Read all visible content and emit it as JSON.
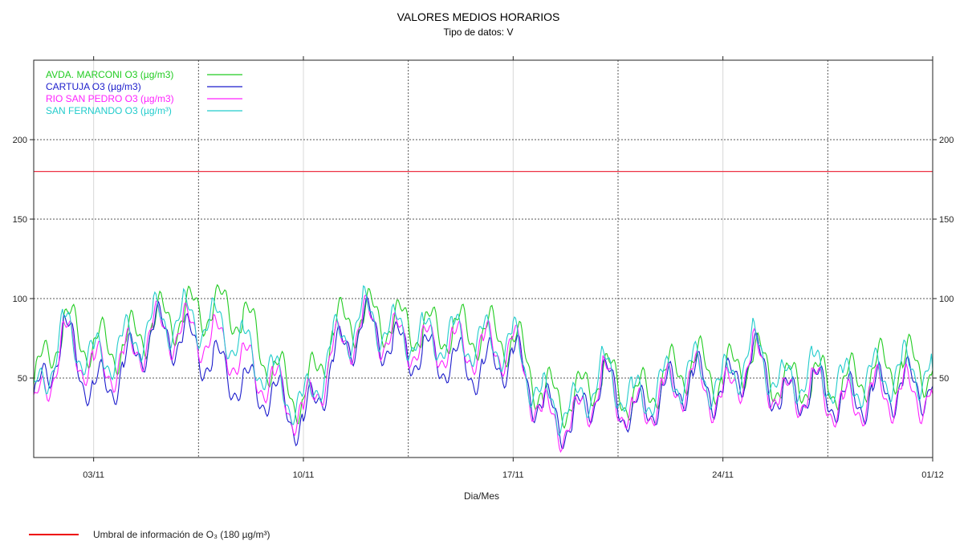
{
  "colors": {
    "marconi": "#22cc22",
    "cartuja": "#1c1ccc",
    "rio": "#ff22ff",
    "fernando": "#22cccc",
    "threshold": "#ee3344"
  },
  "footer": {
    "text": "Umbral de información de O₃ (180 µg/m³)"
  },
  "chart_data": {
    "type": "line",
    "title": "VALORES MEDIOS HORARIOS",
    "subtitle": "Tipo de datos: V",
    "xlabel": "Dia/Mes",
    "ylabel": "",
    "x_range": [
      "2019-11-01",
      "2019-12-01"
    ],
    "ylim": [
      0,
      250
    ],
    "x_ticks": [
      "03/11",
      "10/11",
      "17/11",
      "24/11",
      "01/12"
    ],
    "x_tick_dates": [
      "2019-11-03",
      "2019-11-10",
      "2019-11-17",
      "2019-11-24",
      "2019-12-01"
    ],
    "y_ticks": [
      50,
      100,
      150,
      200
    ],
    "grid": true,
    "legend_position": "top-left",
    "threshold": {
      "value": 180
    },
    "series": [
      {
        "name": "AVDA. MARCONI O3 (µg/m3)",
        "color_key": "marconi",
        "x": [
          "2019-11-01",
          "2019-11-02",
          "2019-11-03",
          "2019-11-04",
          "2019-11-05",
          "2019-11-06",
          "2019-11-07",
          "2019-11-08",
          "2019-11-09",
          "2019-11-10",
          "2019-11-11",
          "2019-11-12",
          "2019-11-13",
          "2019-11-14",
          "2019-11-15",
          "2019-11-16",
          "2019-11-17",
          "2019-11-18",
          "2019-11-19",
          "2019-11-20",
          "2019-11-21",
          "2019-11-22",
          "2019-11-23",
          "2019-11-24",
          "2019-11-25",
          "2019-11-26",
          "2019-11-27",
          "2019-11-28",
          "2019-11-29",
          "2019-11-30",
          "2019-12-01"
        ],
        "values": [
          45,
          85,
          70,
          70,
          85,
          90,
          95,
          90,
          55,
          35,
          80,
          90,
          85,
          80,
          80,
          78,
          75,
          40,
          35,
          55,
          35,
          50,
          60,
          50,
          65,
          45,
          50,
          45,
          55,
          60,
          55
        ]
      },
      {
        "name": "CARTUJA O3 (µg/m3)",
        "color_key": "cartuja",
        "x": [
          "2019-11-01",
          "2019-11-02",
          "2019-11-03",
          "2019-11-04",
          "2019-11-05",
          "2019-11-06",
          "2019-11-07",
          "2019-11-08",
          "2019-11-09",
          "2019-11-10",
          "2019-11-11",
          "2019-11-12",
          "2019-11-13",
          "2019-11-14",
          "2019-11-15",
          "2019-11-16",
          "2019-11-17",
          "2019-11-18",
          "2019-11-19",
          "2019-11-20",
          "2019-11-21",
          "2019-11-22",
          "2019-11-23",
          "2019-11-24",
          "2019-11-25",
          "2019-11-26",
          "2019-11-27",
          "2019-11-28",
          "2019-11-29",
          "2019-11-30",
          "2019-12-01"
        ],
        "values": [
          30,
          80,
          40,
          55,
          80,
          75,
          60,
          45,
          40,
          20,
          60,
          85,
          70,
          65,
          60,
          55,
          65,
          30,
          20,
          50,
          25,
          40,
          50,
          40,
          65,
          35,
          45,
          35,
          40,
          45,
          45
        ]
      },
      {
        "name": "RIO SAN PEDRO O3 (µg/m3)",
        "color_key": "rio",
        "x": [
          "2019-11-01",
          "2019-11-02",
          "2019-11-03",
          "2019-11-04",
          "2019-11-05",
          "2019-11-06",
          "2019-11-07",
          "2019-11-08",
          "2019-11-09",
          "2019-11-10",
          "2019-11-11",
          "2019-11-12",
          "2019-11-13",
          "2019-11-14",
          "2019-11-15",
          "2019-11-16",
          "2019-11-17",
          "2019-11-18",
          "2019-11-19",
          "2019-11-20",
          "2019-11-21",
          "2019-11-22",
          "2019-11-23",
          "2019-11-24",
          "2019-11-25",
          "2019-11-26",
          "2019-11-27",
          "2019-11-28",
          "2019-11-29",
          "2019-11-30",
          "2019-12-01"
        ],
        "values": [
          25,
          75,
          55,
          60,
          80,
          80,
          75,
          60,
          45,
          25,
          65,
          85,
          75,
          70,
          70,
          68,
          70,
          25,
          20,
          50,
          25,
          40,
          50,
          35,
          65,
          35,
          45,
          30,
          40,
          40,
          40
        ]
      },
      {
        "name": "SAN FERNANDO O3 (µg/m³)",
        "color_key": "fernando",
        "x": [
          "2019-11-01",
          "2019-11-02",
          "2019-11-03",
          "2019-11-04",
          "2019-11-05",
          "2019-11-06",
          "2019-11-07",
          "2019-11-08",
          "2019-11-09",
          "2019-11-10",
          "2019-11-11",
          "2019-11-12",
          "2019-11-13",
          "2019-11-14",
          "2019-11-15",
          "2019-11-16",
          "2019-11-17",
          "2019-11-18",
          "2019-11-19",
          "2019-11-20",
          "2019-11-21",
          "2019-11-22",
          "2019-11-23",
          "2019-11-24",
          "2019-11-25",
          "2019-11-26",
          "2019-11-27",
          "2019-11-28",
          "2019-11-29",
          "2019-11-30",
          "2019-12-01"
        ],
        "values": [
          35,
          80,
          60,
          70,
          85,
          88,
          85,
          70,
          50,
          30,
          70,
          90,
          80,
          75,
          75,
          72,
          72,
          35,
          30,
          55,
          35,
          45,
          55,
          45,
          70,
          45,
          55,
          45,
          50,
          55,
          55
        ]
      }
    ]
  }
}
